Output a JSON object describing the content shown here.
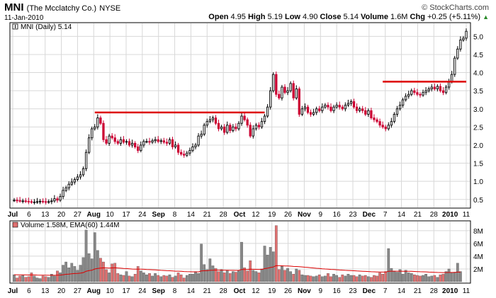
{
  "header": {
    "symbol": "MNI",
    "company": "(The Mcclatchy Co.)",
    "exchange": "NYSE",
    "date": "11-Jan-2010",
    "watermark": "© StockCharts.com",
    "quote": {
      "open_label": "Open",
      "open": "4.95",
      "high_label": "High",
      "high": "5.19",
      "low_label": "Low",
      "low": "4.90",
      "close_label": "Close",
      "close": "5.14",
      "volume_label": "Volume",
      "volume": "1.6M",
      "chg_label": "Chg",
      "chg": "+0.25 (+5.11%)",
      "chg_arrow": "▲"
    }
  },
  "colors": {
    "up": "#000000",
    "down": "#cc0033",
    "resistance": "#dd0000",
    "ema": "#dd0000",
    "vol_up": "#888888",
    "vol_down": "#e07070",
    "grid": "#d8d8d8",
    "background": "#ffffff"
  },
  "chart_data": [
    {
      "type": "candlestick",
      "legend": "MNI (Daily) 5.14",
      "ylim": [
        0.3,
        5.3
      ],
      "yticks": [
        0.5,
        1.0,
        1.5,
        2.0,
        2.5,
        3.0,
        3.5,
        4.0,
        4.5,
        5.0
      ],
      "ytick_labels": [
        "0.5",
        "1.0",
        "1.5",
        "2.0",
        "2.5",
        "3.0",
        "3.5",
        "4.0",
        "4.5",
        "5.0"
      ],
      "xtick_labels": [
        "Jul",
        "6",
        "13",
        "20",
        "27",
        "Aug",
        "10",
        "17",
        "24",
        "Sep",
        "8",
        "14",
        "21",
        "28",
        "Oct",
        "12",
        "19",
        "26",
        "Nov",
        "9",
        "16",
        "23",
        "Dec",
        "7",
        "14",
        "21",
        "28",
        "2010",
        "11"
      ],
      "close": [
        0.48,
        0.47,
        0.46,
        0.46,
        0.45,
        0.44,
        0.43,
        0.43,
        0.44,
        0.45,
        0.44,
        0.43,
        0.44,
        0.46,
        0.52,
        0.48,
        0.58,
        0.75,
        0.82,
        0.92,
        0.98,
        1.05,
        1.12,
        1.18,
        1.35,
        1.8,
        2.2,
        2.45,
        2.5,
        2.75,
        2.6,
        2.15,
        2.05,
        2.25,
        2.2,
        2.1,
        2.05,
        2.15,
        2.08,
        2.1,
        2.0,
        2.05,
        1.95,
        1.85,
        2.0,
        2.1,
        2.1,
        2.08,
        2.12,
        2.15,
        2.1,
        2.12,
        2.08,
        2.05,
        2.15,
        1.95,
        2.0,
        1.8,
        1.75,
        1.72,
        1.78,
        1.85,
        1.95,
        2.0,
        2.25,
        2.3,
        2.55,
        2.65,
        2.7,
        2.75,
        2.6,
        2.45,
        2.5,
        2.35,
        2.55,
        2.4,
        2.5,
        2.45,
        2.6,
        2.8,
        2.7,
        2.55,
        2.25,
        2.45,
        2.55,
        2.5,
        2.65,
        2.8,
        3.05,
        3.5,
        3.95,
        3.4,
        3.3,
        3.6,
        3.45,
        3.5,
        3.7,
        3.3,
        3.55,
        2.85,
        3.0,
        3.05,
        2.9,
        2.85,
        2.9,
        3.0,
        2.95,
        3.05,
        3.1,
        3.05,
        2.95,
        3.05,
        3.1,
        3.05,
        3.0,
        3.1,
        3.15,
        3.2,
        3.05,
        2.95,
        3.0,
        2.95,
        2.85,
        2.95,
        2.75,
        2.7,
        2.65,
        2.55,
        2.5,
        2.45,
        2.55,
        2.65,
        2.85,
        3.0,
        3.1,
        3.25,
        3.35,
        3.4,
        3.5,
        3.45,
        3.4,
        3.38,
        3.45,
        3.5,
        3.55,
        3.6,
        3.55,
        3.62,
        3.5,
        3.45,
        3.6,
        3.75,
        3.95,
        4.4,
        4.65,
        4.9,
        4.95,
        5.14
      ],
      "resistance_lines": [
        {
          "y": 2.9,
          "x_start_index": 28,
          "x_end_index": 87
        },
        {
          "y": 3.75,
          "x_start_index": 128,
          "x_end_index": 157
        }
      ]
    },
    {
      "type": "bar",
      "legend": "Volume 1.58M, EMA(60) 1.44M",
      "ylim": [
        0,
        9.2
      ],
      "yticks": [
        2,
        4,
        6,
        8
      ],
      "ytick_labels": [
        "2M",
        "4M",
        "6M",
        "8M"
      ],
      "xtick_labels": [
        "Jul",
        "6",
        "13",
        "20",
        "27",
        "Aug",
        "10",
        "17",
        "24",
        "Sep",
        "8",
        "14",
        "21",
        "28",
        "Oct",
        "12",
        "19",
        "26",
        "Nov",
        "9",
        "16",
        "23",
        "Dec",
        "7",
        "14",
        "21",
        "28",
        "2010",
        "11"
      ],
      "values_millions": [
        1.1,
        0.6,
        0.9,
        1.0,
        0.7,
        0.8,
        1.4,
        0.9,
        0.6,
        0.5,
        0.9,
        0.8,
        0.7,
        1.2,
        0.9,
        1.7,
        1.4,
        2.6,
        3.1,
        2.2,
        2.9,
        2.4,
        1.8,
        2.6,
        3.8,
        8.1,
        4.4,
        3.6,
        7.7,
        4.9,
        3.7,
        3.1,
        1.9,
        1.4,
        2.8,
        2.9,
        1.3,
        1.1,
        1.0,
        1.6,
        0.9,
        0.8,
        1.2,
        2.4,
        1.7,
        1.4,
        1.1,
        1.3,
        0.9,
        1.3,
        1.0,
        0.8,
        1.0,
        0.9,
        1.1,
        0.7,
        0.9,
        1.4,
        1.1,
        0.6,
        1.0,
        1.2,
        1.2,
        1.6,
        1.3,
        5.9,
        2.7,
        1.9,
        3.6,
        2.5,
        2.1,
        1.6,
        1.9,
        1.4,
        1.8,
        1.3,
        1.6,
        1.5,
        1.7,
        6.2,
        2.2,
        1.7,
        3.3,
        1.8,
        1.6,
        1.4,
        2.0,
        5.6,
        4.2,
        5.4,
        4.7,
        8.8,
        1.9,
        2.4,
        1.8,
        2.1,
        1.6,
        1.2,
        2.0,
        1.8,
        1.1,
        1.0,
        1.0,
        0.9,
        0.8,
        0.9,
        1.1,
        0.8,
        0.9,
        1.3,
        0.8,
        1.2,
        1.0,
        0.7,
        1.1,
        0.9,
        1.2,
        1.0,
        1.0,
        0.8,
        1.1,
        0.9,
        1.0,
        0.8,
        0.7,
        1.0,
        0.9,
        1.4,
        1.2,
        1.6,
        5.2,
        2.1,
        1.7,
        1.5,
        1.9,
        1.2,
        1.8,
        1.4,
        1.3,
        1.1,
        1.0,
        0.9,
        1.0,
        1.2,
        0.8,
        0.9,
        1.0,
        0.7,
        1.1,
        1.2,
        1.6,
        2.0,
        1.4,
        1.5,
        2.9,
        1.6
      ]
    }
  ]
}
